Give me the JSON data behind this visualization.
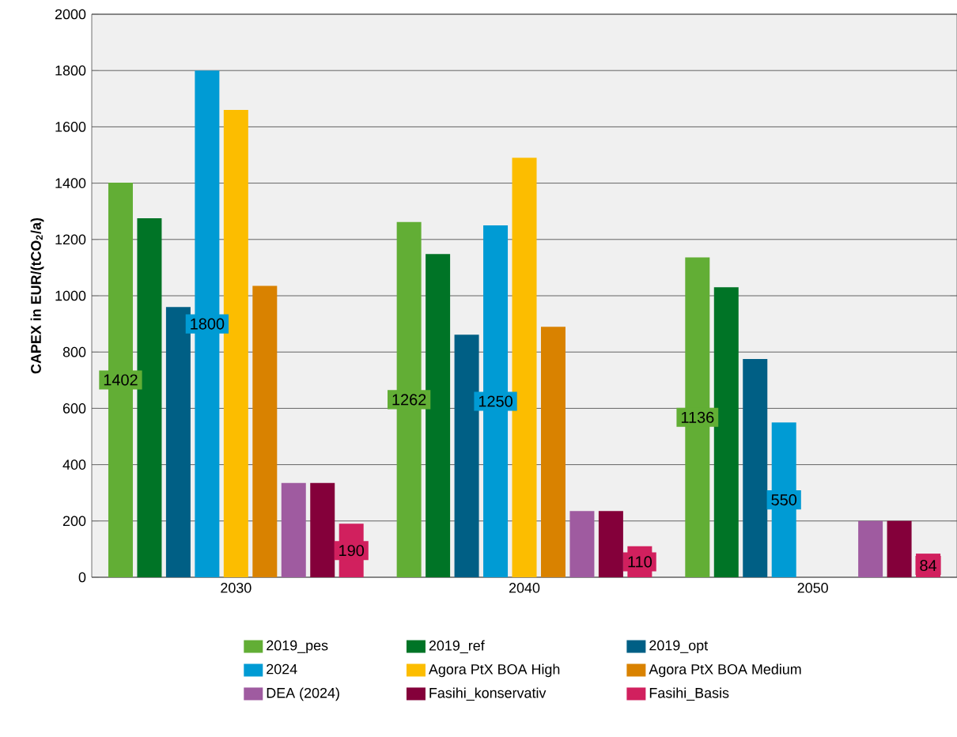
{
  "chart_data": {
    "type": "bar",
    "ylabel": "CAPEX in EUR/(tCO$_{2}$/a)",
    "categories": [
      "2030",
      "2040",
      "2050"
    ],
    "series": [
      {
        "name": "2019_pes",
        "color": "#62ae35",
        "values": [
          1402,
          1262,
          1136
        ],
        "value_labels": [
          "1402",
          "1262",
          "1136"
        ]
      },
      {
        "name": "2019_ref",
        "color": "#007426",
        "values": [
          1275,
          1148,
          1030
        ]
      },
      {
        "name": "2019_opt",
        "color": "#005f85",
        "values": [
          960,
          862,
          775
        ]
      },
      {
        "name": "2024",
        "color": "#009bd4",
        "values": [
          1800,
          1250,
          550
        ],
        "value_labels": [
          "1800",
          "1250",
          "550"
        ]
      },
      {
        "name": "Agora PtX BOA High",
        "color": "#fcbd00",
        "values": [
          1660,
          1490,
          null
        ]
      },
      {
        "name": "Agora PtX BOA Medium",
        "color": "#d98200",
        "values": [
          1035,
          890,
          null
        ]
      },
      {
        "name": "DEA (2024)",
        "color": "#9f5ba0",
        "values": [
          335,
          235,
          200
        ]
      },
      {
        "name": "Fasihi_konservativ",
        "color": "#84003a",
        "values": [
          335,
          235,
          200
        ]
      },
      {
        "name": "Fasihi_Basis",
        "color": "#d1205e",
        "values": [
          190,
          110,
          84
        ],
        "value_labels": [
          "190",
          "110",
          "84"
        ]
      }
    ],
    "ylim": [
      0,
      2000
    ],
    "yticks": [
      0,
      200,
      400,
      600,
      800,
      1000,
      1200,
      1400,
      1600,
      1800,
      2000
    ],
    "grid": "y",
    "legend": "bottom"
  }
}
